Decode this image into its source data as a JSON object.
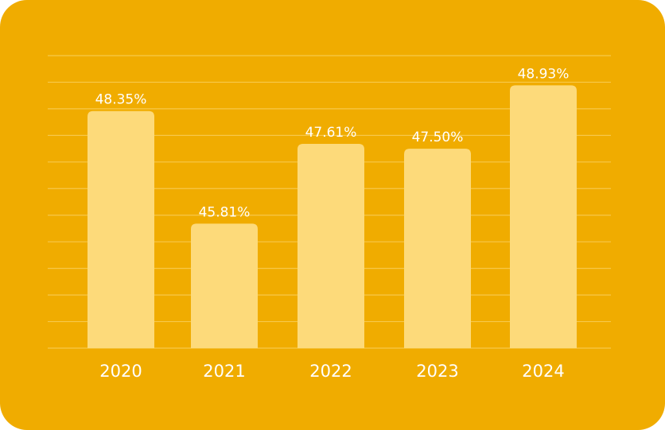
{
  "chart_data": {
    "type": "bar",
    "categories": [
      "2020",
      "2021",
      "2022",
      "2023",
      "2024"
    ],
    "values": [
      48.35,
      45.81,
      47.61,
      47.5,
      48.93
    ],
    "data_labels": [
      "48.35%",
      "45.81%",
      "47.61%",
      "47.50%",
      "48.93%"
    ],
    "title": "",
    "xlabel": "",
    "ylabel": "",
    "ylim": [
      43.0,
      49.6
    ],
    "grid": true,
    "legend": "none",
    "colors": {
      "background": "#F0AC00",
      "bar": "#FDDA7A",
      "gridline": "#F7C84A",
      "text": "#FFFFFF"
    }
  }
}
